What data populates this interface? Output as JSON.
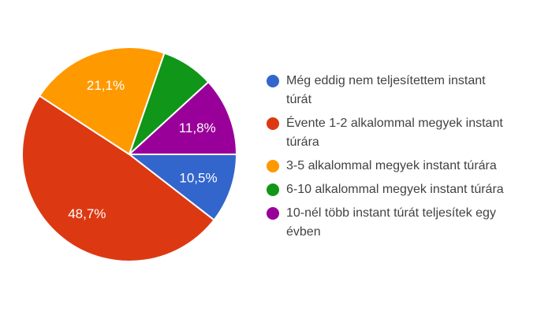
{
  "page": {
    "background": "#ffffff",
    "legend_text_color": "#424242"
  },
  "chart_data": {
    "type": "pie",
    "title": "",
    "start_angle_deg": 90,
    "direction": "clockwise",
    "legend_position": "right",
    "slice_label_color": "#ffffff",
    "separator_color": "#ffffff",
    "total": 100,
    "slices": [
      {
        "label": "Még eddig nem teljesítettem instant túrát",
        "legend_lines": [
          "Még eddig nem teljesítettem instant",
          "túrát"
        ],
        "value": 10.5,
        "pct_label": "10,5%",
        "color": "#3366CC"
      },
      {
        "label": "Évente 1-2 alkalommal megyek instant túrára",
        "legend_lines": [
          "Évente 1-2 alkalommal megyek instant",
          "túrára"
        ],
        "value": 48.7,
        "pct_label": "48,7%",
        "color": "#DC3912"
      },
      {
        "label": "3-5 alkalommal megyek instant túrára",
        "legend_lines": [
          "3-5 alkalommal megyek instant túrára"
        ],
        "value": 21.1,
        "pct_label": "21,1%",
        "color": "#FF9900"
      },
      {
        "label": "6-10 alkalommal megyek instant túrára",
        "legend_lines": [
          "6-10 alkalommal megyek instant túrára"
        ],
        "value": 7.9,
        "pct_label": "",
        "color": "#109618"
      },
      {
        "label": "10-nél több instant túrát teljesítek egy évben",
        "legend_lines": [
          "10-nél több instant túrát teljesítek egy",
          "évben"
        ],
        "value": 11.8,
        "pct_label": "11,8%",
        "color": "#990099"
      }
    ]
  }
}
